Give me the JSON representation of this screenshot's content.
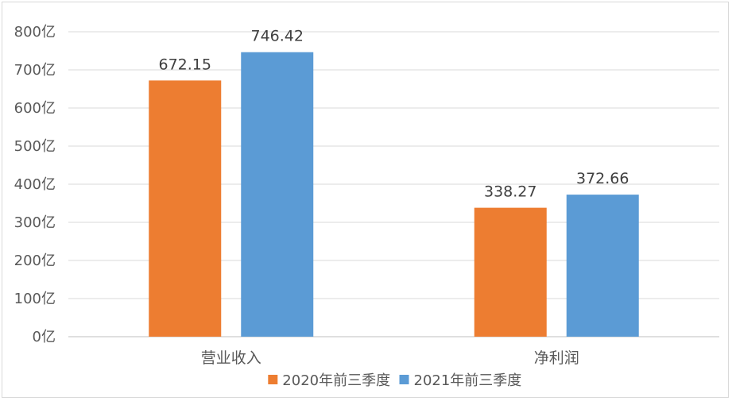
{
  "chart_data": {
    "type": "bar",
    "categories": [
      "营业收入",
      "净利润"
    ],
    "series": [
      {
        "name": "2020年前三季度",
        "values": [
          672.15,
          338.27
        ],
        "color": "#ED7D31"
      },
      {
        "name": "2021年前三季度",
        "values": [
          746.42,
          372.66
        ],
        "color": "#5B9BD5"
      }
    ],
    "ylim": [
      0,
      800
    ],
    "yticks": [
      0,
      100,
      200,
      300,
      400,
      500,
      600,
      700,
      800
    ],
    "ytick_labels": [
      "0亿",
      "100亿",
      "200亿",
      "300亿",
      "400亿",
      "500亿",
      "600亿",
      "700亿",
      "800亿"
    ],
    "data_labels": [
      [
        "672.15",
        "338.27"
      ],
      [
        "746.42",
        "372.66"
      ]
    ],
    "grid": true,
    "legend": "bottom",
    "title": "",
    "xlabel": "",
    "ylabel": ""
  }
}
